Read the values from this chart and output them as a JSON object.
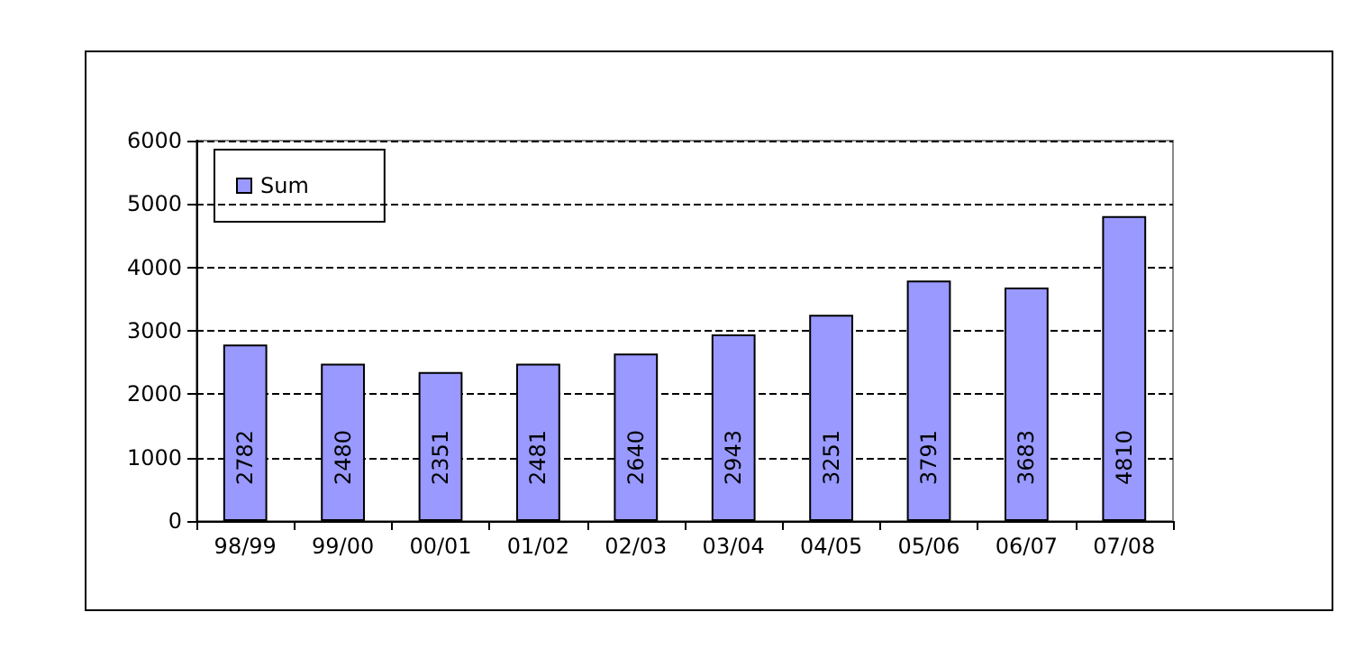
{
  "chart_data": {
    "type": "bar",
    "categories": [
      "98/99",
      "99/00",
      "00/01",
      "01/02",
      "02/03",
      "03/04",
      "04/05",
      "05/06",
      "06/07",
      "07/08"
    ],
    "series": [
      {
        "name": "Sum",
        "color": "#9999ff",
        "values": [
          2782,
          2480,
          2351,
          2481,
          2640,
          2943,
          3251,
          3791,
          3683,
          4810
        ]
      }
    ],
    "ylim": [
      0,
      6000
    ],
    "yticks": [
      0,
      1000,
      2000,
      3000,
      4000,
      5000,
      6000
    ],
    "grid": "y",
    "legend": "top left",
    "data_labels": true
  }
}
